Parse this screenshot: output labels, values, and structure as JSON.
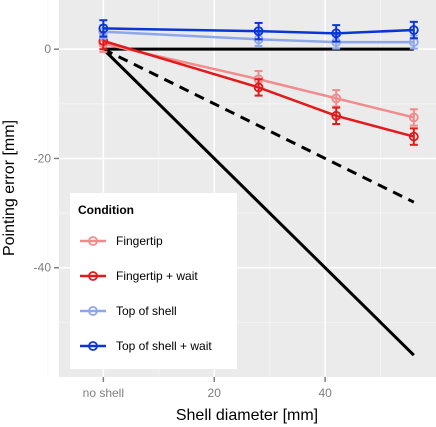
{
  "chart_data": {
    "type": "line",
    "xlabel": "Shell diameter [mm]",
    "ylabel": "Pointing error [mm]",
    "x_tick_labels": [
      {
        "x": 0,
        "label": "no shell"
      },
      {
        "x": 20,
        "label": "20"
      },
      {
        "x": 40,
        "label": "40"
      }
    ],
    "y_tick_labels": [
      {
        "y": 0,
        "label": "0"
      },
      {
        "y": -20,
        "label": "-20"
      },
      {
        "y": -40,
        "label": "-40"
      }
    ],
    "xlim": [
      -8,
      60
    ],
    "ylim": [
      -60,
      9
    ],
    "grid": true,
    "legend": {
      "title": "Condition",
      "position": "bottom-left"
    },
    "series": [
      {
        "name": "Fingertip",
        "color": "#f28b8b",
        "x": [
          0,
          28,
          42,
          56
        ],
        "y": [
          1.0,
          -5.5,
          -9.0,
          -12.5
        ],
        "err": [
          1.5,
          1.5,
          1.5,
          1.5
        ]
      },
      {
        "name": "Fingertip + wait",
        "color": "#e31a1c",
        "x": [
          0,
          28,
          42,
          56
        ],
        "y": [
          1.5,
          -7.0,
          -12.2,
          -16.0
        ],
        "err": [
          1.5,
          1.5,
          1.5,
          1.5
        ]
      },
      {
        "name": "Top of shell",
        "color": "#8ea6ec",
        "x": [
          0,
          28,
          42,
          56
        ],
        "y": [
          3.2,
          1.8,
          1.3,
          1.3
        ],
        "err": [
          1.2,
          1.2,
          1.2,
          1.2
        ]
      },
      {
        "name": "Top of shell + wait",
        "color": "#0a36d6",
        "x": [
          0,
          28,
          42,
          56
        ],
        "y": [
          3.8,
          3.3,
          2.9,
          3.5
        ],
        "err": [
          1.5,
          1.5,
          1.5,
          1.5
        ]
      }
    ],
    "reference_lines": [
      {
        "style": "solid",
        "color": "#000000",
        "x": [
          0,
          56
        ],
        "y": [
          0,
          0
        ]
      },
      {
        "style": "dashed",
        "color": "#000000",
        "x": [
          0,
          56
        ],
        "y": [
          0,
          -28
        ]
      },
      {
        "style": "solid",
        "color": "#000000",
        "x": [
          0,
          56
        ],
        "y": [
          0,
          -56
        ]
      }
    ]
  }
}
